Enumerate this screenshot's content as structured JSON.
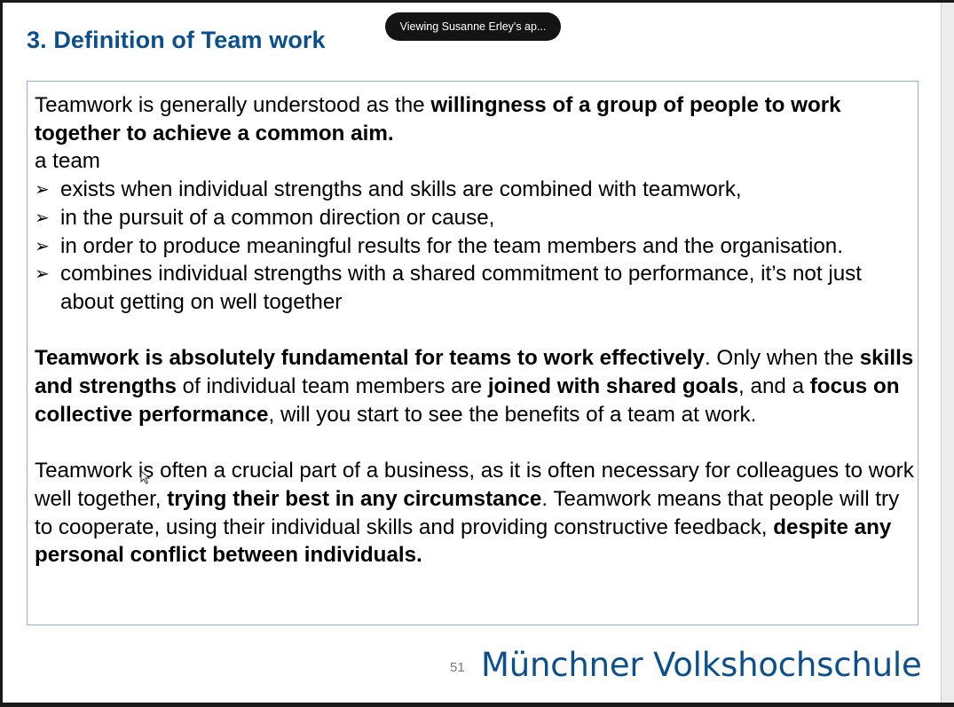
{
  "overlay": {
    "viewing_text": "Viewing Susanne Erley's ap..."
  },
  "slide": {
    "title": "3. Definition of Team work",
    "intro": {
      "plain": "Teamwork is generally understood as the ",
      "bold": "willingness of a group of people to work together to achieve a common aim."
    },
    "team_label": "a team",
    "bullets": [
      "exists when individual strengths and skills are combined with teamwork,",
      "in the pursuit of a common direction or cause,",
      "in order to produce meaningful results for the team members and the organisation.",
      "combines individual strengths with a shared commitment to performance, it’s not just about getting on well together"
    ],
    "para2": {
      "b1": "Teamwork is absolutely fundamental for teams to work effectively",
      "t1": ". Only when the ",
      "b2": "skills and strengths",
      "t2": " of individual team members are ",
      "b3": "joined with shared goals",
      "t3": ", and a ",
      "b4": "focus on collective performance",
      "t4": ", will you start to see the benefits of a team at work."
    },
    "para3": {
      "t1": "Teamwork is often a crucial part of a business, as it is often necessary for colleagues to work well together, ",
      "b1": "trying their best in any circumstance",
      "t2": ". Teamwork means that people will try to cooperate, using their individual skills and providing constructive feedback, ",
      "b2": "despite any personal conflict between individuals."
    },
    "page_number": "51",
    "brand": "Münchner Volkshochschule"
  },
  "colors": {
    "title_blue": "#0b4f8c",
    "box_border": "#8fb0cc",
    "pill_bg": "#141414"
  },
  "icons": {
    "bullet": "arrowhead-bullet-icon",
    "cursor": "mouse-pointer-icon"
  }
}
